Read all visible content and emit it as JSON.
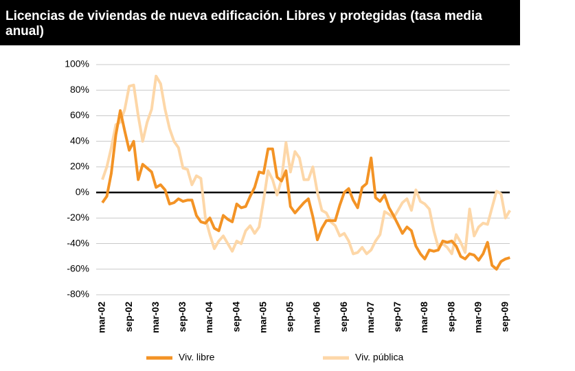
{
  "chart_data": {
    "type": "line",
    "title": "Licencias de viviendas de nueva edificación. Libres y protegidas (tasa media anual)",
    "categories": [
      "mar-02",
      null,
      null,
      null,
      null,
      null,
      "sep-02",
      null,
      null,
      null,
      null,
      null,
      "mar-03",
      null,
      null,
      null,
      null,
      null,
      "sep-03",
      null,
      null,
      null,
      null,
      null,
      "mar-04",
      null,
      null,
      null,
      null,
      null,
      "sep-04",
      null,
      null,
      null,
      null,
      null,
      "mar-05",
      null,
      null,
      null,
      null,
      null,
      "sep-05",
      null,
      null,
      null,
      null,
      null,
      "mar-06",
      null,
      null,
      null,
      null,
      null,
      "sep-06",
      null,
      null,
      null,
      null,
      null,
      "mar-07",
      null,
      null,
      null,
      null,
      null,
      "sep-07",
      null,
      null,
      null,
      null,
      null,
      "mar-08",
      null,
      null,
      null,
      null,
      null,
      "sep-08",
      null,
      null,
      null,
      null,
      null,
      "mar-09",
      null,
      null,
      null,
      null,
      null,
      "sep-09",
      null
    ],
    "series": [
      {
        "name": "Viv. libre",
        "color": "#f39325",
        "values": [
          -8,
          -3,
          15,
          45,
          64,
          48,
          33,
          40,
          10,
          22,
          19,
          16,
          4,
          6,
          2,
          -9,
          -8,
          -5,
          -7,
          -6,
          -6,
          -18,
          -23,
          -24,
          -20,
          -28,
          -30,
          -18,
          -21,
          -23,
          -9,
          -12,
          -11,
          -3,
          4,
          16,
          15,
          34,
          34,
          12,
          9,
          17,
          -11,
          -16,
          -12,
          -8,
          -5,
          -19,
          -37,
          -28,
          -22,
          -22,
          -22,
          -10,
          0,
          3,
          -6,
          -12,
          4,
          7,
          27,
          -4,
          -7,
          -2,
          -12,
          -18,
          -25,
          -32,
          -27,
          -30,
          -42,
          -48,
          -52,
          -45,
          -46,
          -45,
          -38,
          -39,
          -38,
          -42,
          -50,
          -52,
          -48,
          -49,
          -53,
          -48,
          -39,
          -57,
          -60,
          -54,
          -52,
          -51
        ]
      },
      {
        "name": "Viv. pública",
        "color": "#fdd7a8",
        "values": [
          10,
          20,
          35,
          53,
          55,
          65,
          83,
          84,
          60,
          40,
          55,
          65,
          91,
          85,
          65,
          50,
          40,
          35,
          19,
          18,
          6,
          13,
          11,
          -20,
          -33,
          -44,
          -38,
          -34,
          -40,
          -46,
          -38,
          -40,
          -30,
          -26,
          -32,
          -27,
          -6,
          17,
          10,
          -2,
          10,
          39,
          16,
          32,
          27,
          10,
          10,
          20,
          0,
          -14,
          -16,
          -23,
          -26,
          -34,
          -32,
          -38,
          -48,
          -47,
          -43,
          -48,
          -45,
          -38,
          -33,
          -15,
          -17,
          -20,
          -14,
          -8,
          -5,
          -14,
          2,
          -7,
          -9,
          -13,
          -30,
          -43,
          -40,
          -43,
          -48,
          -33,
          -39,
          -47,
          -13,
          -34,
          -27,
          -24,
          -25,
          -12,
          1,
          -1,
          -20,
          -14
        ]
      }
    ],
    "ylim": [
      -80,
      100
    ],
    "yticks": [
      {
        "value": -80,
        "label": "-80%"
      },
      {
        "value": -60,
        "label": "-60%"
      },
      {
        "value": -40,
        "label": "-40%"
      },
      {
        "value": -20,
        "label": "-20%"
      },
      {
        "value": 0,
        "label": "0%"
      },
      {
        "value": 20,
        "label": "20%"
      },
      {
        "value": 40,
        "label": "40%"
      },
      {
        "value": 60,
        "label": "60%"
      },
      {
        "value": 80,
        "label": "80%"
      },
      {
        "value": 100,
        "label": "100%"
      }
    ],
    "grid": true
  }
}
